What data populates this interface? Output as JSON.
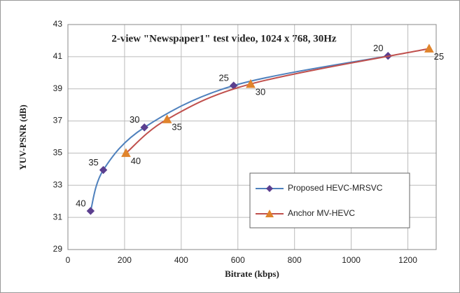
{
  "chart_data": {
    "type": "line",
    "title": "2-view \"Newspaper1\" test video, 1024 x 768, 30Hz",
    "xlabel": "Bitrate (kbps)",
    "ylabel": "YUV-PSNR  (dB)",
    "xlim": [
      0,
      1300
    ],
    "xticks": [
      0,
      200,
      400,
      600,
      800,
      1000,
      1200
    ],
    "ylim": [
      29,
      43
    ],
    "yticks": [
      29,
      31,
      33,
      35,
      37,
      39,
      41,
      43
    ],
    "grid": true,
    "legend": "lower right",
    "series": [
      {
        "name": "Proposed HEVC-MRSVC",
        "color": "#4f81bd",
        "marker_color": "#5b3f8f",
        "marker": "diamond",
        "x": [
          80,
          125,
          270,
          585,
          1130
        ],
        "values": [
          31.4,
          33.95,
          36.6,
          39.2,
          41.05
        ],
        "point_labels": [
          "40",
          "35",
          "30",
          "25",
          "20"
        ]
      },
      {
        "name": "Anchor MV-HEVC",
        "color": "#c0504d",
        "marker_color": "#e0842c",
        "marker": "triangle",
        "x": [
          205,
          350,
          645,
          1275
        ],
        "values": [
          35.0,
          37.1,
          39.3,
          41.5
        ],
        "point_labels": [
          "40",
          "35",
          "30",
          "25"
        ]
      }
    ]
  }
}
